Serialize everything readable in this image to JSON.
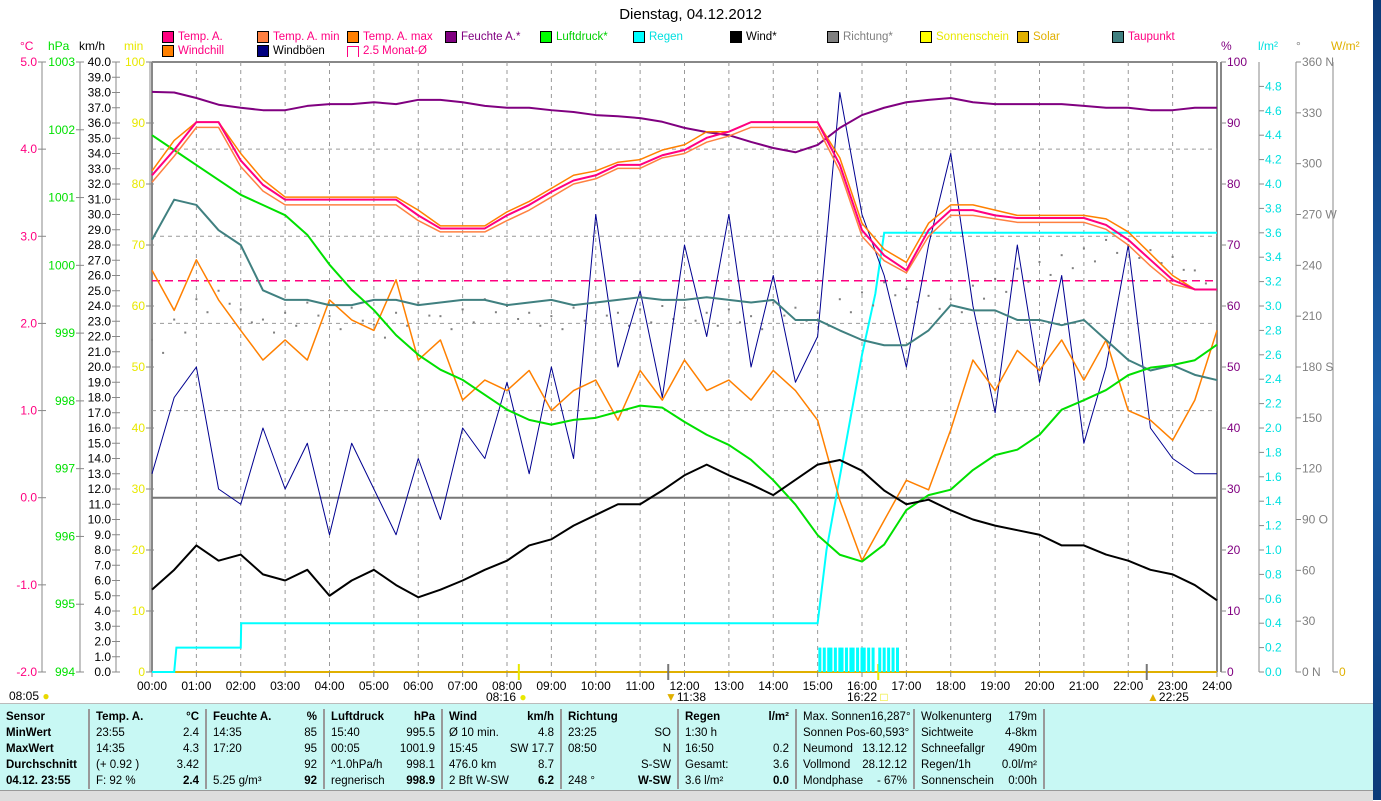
{
  "title": "Dienstag, 04.12.2012",
  "legend": [
    {
      "label": "Temp. A.",
      "swatch": "#ff0080",
      "text": "#ff0080"
    },
    {
      "label": "Temp. A. min",
      "swatch": "#ff8040",
      "text": "#ff0080"
    },
    {
      "label": "Temp. A. max",
      "swatch": "#ff8000",
      "text": "#ff0080"
    },
    {
      "label": "Feuchte A.*",
      "swatch": "#800080",
      "text": "#800080"
    },
    {
      "label": "Luftdruck*",
      "swatch": "#00ff00",
      "text": "#00d000"
    },
    {
      "label": "Regen",
      "swatch": "#00ffff",
      "text": "#00e0e0"
    },
    {
      "label": "Wind*",
      "swatch": "#000000",
      "text": "#000000"
    },
    {
      "label": "Richtung*",
      "swatch": "#808080",
      "text": "#808080"
    },
    {
      "label": "Sonnenschein",
      "swatch": "#ffff00",
      "text": "#e8e800"
    },
    {
      "label": "Solar",
      "swatch": "#e0b000",
      "text": "#e0b000"
    },
    {
      "label": "Taupunkt",
      "swatch": "#408080",
      "text": "#ff0080"
    },
    {
      "label": "Windchill",
      "swatch": "#ff8000",
      "text": "#ff0080"
    },
    {
      "label": "Windböen",
      "swatch": "#000080",
      "text": "#000000"
    },
    {
      "label": "2.5 Monat-Ø",
      "swatch": "#ffffff",
      "text": "#ff0080"
    }
  ],
  "units": {
    "c": "°C",
    "hpa": "hPa",
    "kmh": "km/h",
    "min": "min",
    "pct": "%",
    "lm2": "l/m²",
    "deg": "°",
    "wm2": "W/m²"
  },
  "axis_labels": {
    "c": [
      "5.0",
      "4.0",
      "3.0",
      "2.0",
      "1.0",
      "0.0",
      "-1.0",
      "-2.0"
    ],
    "hpa": [
      "1003",
      "1002",
      "1001",
      "1000",
      "999",
      "998",
      "997",
      "996",
      "995",
      "994"
    ],
    "min": [
      "100",
      "90",
      "80",
      "70",
      "60",
      "50",
      "40",
      "30",
      "20",
      "10",
      "0"
    ],
    "pct": [
      "100",
      "90",
      "80",
      "70",
      "60",
      "50",
      "40",
      "30",
      "20",
      "10",
      "0"
    ],
    "deg": [
      "360 N",
      "330",
      "300",
      "270 W",
      "240",
      "210",
      "180 S",
      "150",
      "120",
      "90 O",
      "60",
      "30",
      "0 N"
    ],
    "wm2": [
      "0"
    ]
  },
  "time_labels": [
    "00:00",
    "01:00",
    "02:00",
    "03:00",
    "04:00",
    "05:00",
    "06:00",
    "07:00",
    "08:00",
    "09:00",
    "10:00",
    "11:00",
    "12:00",
    "13:00",
    "14:00",
    "15:00",
    "16:00",
    "17:00",
    "18:00",
    "19:00",
    "20:00",
    "21:00",
    "22:00",
    "23:00",
    "24:00"
  ],
  "events": {
    "sunrise_prev": "08:05",
    "sunrise": "08:16",
    "moon_a": "11:38",
    "sunset": "16:22",
    "moon_b": "22:25"
  },
  "colors": {
    "temp": "#ff0080",
    "tmin": "#ff8040",
    "tmax": "#ff8000",
    "windchill": "#ff8000",
    "dew": "#408080",
    "hum": "#800080",
    "press": "#00e000",
    "wind": "#000000",
    "gust": "#000090",
    "rain": "#00ffff",
    "dir": "#808080"
  },
  "chart_data": {
    "type": "line",
    "title": "Dienstag, 04.12.2012",
    "x_unit": "hours",
    "x_step": 0.5,
    "xlim": [
      0,
      24
    ],
    "axes": {
      "c": [
        -2,
        5
      ],
      "hpa": [
        994,
        1003
      ],
      "kmh": [
        0,
        40
      ],
      "min": [
        0,
        100
      ],
      "pct": [
        0,
        100
      ],
      "lm2": [
        0,
        4.8
      ],
      "deg": [
        0,
        360
      ]
    },
    "avg_2_5_month_c": 2.49,
    "series": [
      {
        "name": "Temp. A.",
        "axis": "c",
        "key": "temp",
        "values": [
          3.7,
          3.99,
          4.31,
          4.31,
          3.87,
          3.59,
          3.42,
          3.42,
          3.42,
          3.42,
          3.42,
          3.42,
          3.24,
          3.09,
          3.09,
          3.09,
          3.24,
          3.36,
          3.51,
          3.64,
          3.7,
          3.82,
          3.82,
          3.93,
          3.99,
          4.13,
          4.2,
          4.31,
          4.31,
          4.31,
          4.31,
          3.82,
          3.07,
          2.78,
          2.61,
          3.07,
          3.3,
          3.3,
          3.24,
          3.21,
          3.21,
          3.21,
          3.21,
          3.13,
          2.96,
          2.73,
          2.5,
          2.39,
          2.39
        ]
      },
      {
        "name": "Temp. A. min",
        "axis": "c",
        "key": "tmin",
        "values": [
          3.62,
          3.92,
          4.25,
          4.25,
          3.8,
          3.52,
          3.36,
          3.36,
          3.36,
          3.36,
          3.36,
          3.36,
          3.18,
          3.05,
          3.05,
          3.05,
          3.18,
          3.3,
          3.45,
          3.6,
          3.66,
          3.78,
          3.78,
          3.9,
          3.95,
          4.08,
          4.15,
          4.25,
          4.25,
          4.25,
          4.25,
          3.75,
          3.0,
          2.72,
          2.58,
          3.0,
          3.24,
          3.24,
          3.2,
          3.16,
          3.16,
          3.16,
          3.16,
          3.08,
          2.9,
          2.66,
          2.45,
          2.39,
          2.39
        ]
      },
      {
        "name": "Temp. A. max",
        "axis": "c",
        "key": "tmax",
        "values": [
          3.75,
          4.1,
          4.31,
          4.31,
          3.95,
          3.65,
          3.45,
          3.45,
          3.45,
          3.45,
          3.45,
          3.45,
          3.3,
          3.12,
          3.12,
          3.12,
          3.28,
          3.4,
          3.55,
          3.7,
          3.75,
          3.85,
          3.88,
          3.99,
          4.05,
          4.2,
          4.2,
          4.31,
          4.31,
          4.31,
          4.31,
          3.9,
          3.15,
          2.85,
          2.7,
          3.15,
          3.36,
          3.36,
          3.3,
          3.24,
          3.24,
          3.24,
          3.24,
          3.2,
          3.05,
          2.8,
          2.55,
          2.39,
          2.39
        ]
      },
      {
        "name": "Windchill",
        "axis": "c",
        "key": "windchill",
        "values": [
          2.61,
          2.15,
          2.73,
          2.27,
          1.92,
          1.58,
          1.81,
          1.58,
          2.27,
          2.04,
          1.92,
          2.5,
          1.58,
          1.81,
          1.12,
          1.35,
          1.23,
          1.46,
          1.0,
          1.23,
          1.35,
          0.89,
          1.46,
          1.12,
          1.58,
          1.23,
          1.35,
          1.12,
          1.46,
          1.23,
          0.89,
          -0.03,
          -0.72,
          -0.26,
          0.2,
          0.09,
          0.78,
          1.58,
          1.23,
          1.69,
          1.46,
          1.81,
          1.35,
          1.81,
          1.0,
          0.89,
          0.66,
          1.12,
          1.92
        ]
      },
      {
        "name": "Taupunkt",
        "axis": "c",
        "key": "dew",
        "values": [
          2.96,
          3.42,
          3.36,
          3.07,
          2.9,
          2.38,
          2.27,
          2.27,
          2.21,
          2.21,
          2.27,
          2.27,
          2.21,
          2.24,
          2.27,
          2.27,
          2.21,
          2.24,
          2.27,
          2.21,
          2.24,
          2.27,
          2.3,
          2.27,
          2.27,
          2.3,
          2.27,
          2.24,
          2.27,
          2.04,
          2.04,
          1.92,
          1.81,
          1.75,
          1.75,
          1.92,
          2.21,
          2.15,
          2.15,
          2.04,
          2.04,
          1.98,
          2.04,
          1.81,
          1.58,
          1.46,
          1.52,
          1.41,
          1.35
        ]
      },
      {
        "name": "Feuchte A.",
        "axis": "pct",
        "key": "hum",
        "values": [
          95.1,
          95.0,
          94.1,
          93.0,
          92.5,
          92.1,
          92.1,
          92.8,
          93.1,
          93.1,
          93.4,
          93.1,
          93.8,
          93.8,
          93.4,
          92.8,
          92.5,
          92.5,
          92.1,
          91.8,
          91.3,
          91.1,
          90.8,
          90.2,
          89.2,
          88.5,
          88.0,
          86.9,
          85.9,
          85.2,
          86.4,
          89.2,
          91.3,
          92.5,
          93.4,
          93.8,
          94.1,
          93.4,
          93.1,
          93.1,
          93.1,
          93.1,
          92.8,
          92.5,
          92.5,
          92.1,
          92.1,
          92.5,
          92.5
        ]
      },
      {
        "name": "Luftdruck",
        "axis": "hpa",
        "key": "press",
        "values": [
          1001.92,
          1001.7,
          1001.48,
          1001.26,
          1001.04,
          1000.89,
          1000.74,
          1000.45,
          1000.01,
          999.64,
          999.34,
          998.97,
          998.68,
          998.46,
          998.31,
          998.09,
          997.87,
          997.72,
          997.65,
          997.72,
          997.75,
          997.84,
          997.93,
          997.9,
          997.69,
          997.5,
          997.35,
          997.13,
          996.83,
          996.47,
          996.02,
          995.73,
          995.63,
          995.88,
          996.39,
          996.61,
          996.69,
          996.98,
          997.2,
          997.28,
          997.5,
          997.87,
          998.01,
          998.16,
          998.38,
          998.49,
          998.53,
          998.6,
          998.83
        ]
      },
      {
        "name": "Wind",
        "axis": "kmh",
        "key": "wind",
        "values": [
          5.4,
          6.7,
          8.3,
          7.3,
          7.7,
          6.4,
          6.0,
          6.7,
          5.0,
          6.0,
          6.7,
          5.7,
          4.9,
          5.4,
          6.0,
          6.7,
          7.3,
          8.3,
          8.7,
          9.6,
          10.3,
          11.0,
          11.0,
          11.9,
          12.9,
          13.6,
          12.9,
          12.3,
          11.6,
          12.6,
          13.6,
          13.9,
          13.2,
          11.9,
          11.0,
          11.3,
          10.6,
          10.0,
          9.6,
          9.3,
          9.0,
          8.3,
          8.3,
          7.7,
          7.3,
          6.7,
          6.4,
          5.7,
          4.7
        ]
      },
      {
        "name": "Windböen",
        "axis": "kmh",
        "key": "gust",
        "values": [
          13,
          18,
          20,
          12,
          11,
          16,
          12,
          15,
          9,
          15,
          12,
          9,
          14,
          10,
          16,
          14,
          19,
          13,
          20,
          14,
          30,
          20,
          25,
          18,
          28,
          22,
          30,
          20,
          26,
          19,
          22,
          38,
          30,
          26,
          20,
          28,
          34,
          24,
          17,
          28,
          19,
          26,
          15,
          20,
          28,
          16,
          14,
          13,
          13
        ]
      },
      {
        "name": "Richtung",
        "axis": "deg",
        "key": "dir",
        "values": [
          196,
          208,
          220,
          225,
          214,
          208,
          212,
          218,
          210,
          215,
          205,
          212,
          218,
          210,
          214,
          220,
          216,
          212,
          210,
          215,
          218,
          212,
          214,
          216,
          215,
          212,
          214,
          210,
          218,
          215,
          212,
          220,
          224,
          230,
          226,
          222,
          220,
          228,
          232,
          238,
          242,
          246,
          250,
          255,
          252,
          249,
          245,
          237,
          225
        ]
      }
    ],
    "rain_total": {
      "name": "Regen",
      "axis": "lm2",
      "points": [
        [
          0,
          0
        ],
        [
          0.5,
          0
        ],
        [
          0.55,
          0.2
        ],
        [
          2,
          0.2
        ],
        [
          2.01,
          0.4
        ],
        [
          15,
          0.4
        ],
        [
          15.2,
          1.0
        ],
        [
          15.6,
          1.8
        ],
        [
          16.0,
          2.6
        ],
        [
          16.3,
          3.1
        ],
        [
          16.5,
          3.6
        ],
        [
          24,
          3.6
        ]
      ]
    },
    "rain_rate_hours": [
      15.05,
      15.15,
      15.25,
      15.3,
      15.4,
      15.5,
      15.55,
      15.65,
      15.75,
      15.8,
      15.9,
      16.0,
      16.05,
      16.15,
      16.25,
      16.4,
      16.5,
      16.6,
      16.7,
      16.8
    ],
    "rain_rate_value": 0.2
  },
  "panel": {
    "sensor": [
      "Sensor",
      "MinWert",
      "MaxWert",
      "Durchschnitt",
      "04.12. 23:55"
    ],
    "temp": {
      "head": [
        "Temp. A.",
        "°C"
      ],
      "rows": [
        [
          "23:55",
          "2.4"
        ],
        [
          "14:35",
          "4.3"
        ],
        [
          "(+ 0.92 )",
          "3.42"
        ],
        [
          "F: 92 %",
          "2.4"
        ]
      ]
    },
    "hum": {
      "head": [
        "Feuchte A.",
        "%"
      ],
      "rows": [
        [
          "14:35",
          "85"
        ],
        [
          "17:20",
          "95"
        ],
        [
          "",
          "92"
        ],
        [
          "5.25 g/m³",
          "92"
        ]
      ]
    },
    "press": {
      "head": [
        "Luftdruck",
        "hPa"
      ],
      "rows": [
        [
          "15:40",
          "995.5"
        ],
        [
          "00:05",
          "1001.9"
        ],
        [
          "^1.0hPa/h",
          "998.1"
        ],
        [
          "regnerisch",
          "998.9"
        ]
      ]
    },
    "wind": {
      "head": [
        "Wind",
        "km/h"
      ],
      "rows": [
        [
          "Ø 10 min.",
          "4.8"
        ],
        [
          "15:45",
          "SW 17.7"
        ],
        [
          "476.0 km",
          "8.7"
        ],
        [
          "2 Bft W-SW",
          "6.2"
        ]
      ]
    },
    "dir": {
      "head": [
        "Richtung",
        ""
      ],
      "rows": [
        [
          "23:25",
          "SO"
        ],
        [
          "08:50",
          "N"
        ],
        [
          "",
          "S-SW"
        ],
        [
          "248 °",
          "W-SW"
        ]
      ]
    },
    "rain": {
      "head": [
        "Regen",
        "l/m²"
      ],
      "rows": [
        [
          "1:30 h",
          ""
        ],
        [
          "16:50",
          "0.2"
        ],
        [
          "Gesamt:",
          "3.6"
        ],
        [
          "3.6 l/m²",
          "0.0"
        ]
      ]
    },
    "astro": {
      "rows": [
        [
          "Max. Sonnen",
          "16,287°"
        ],
        [
          "Sonnen Pos",
          "-60,593°"
        ],
        [
          "Neumond",
          "13.12.12"
        ],
        [
          "Vollmond",
          "28.12.12"
        ],
        [
          "Mondphase",
          "- 67%"
        ]
      ]
    },
    "misc": {
      "rows": [
        [
          "Wolkenunterg",
          "179m"
        ],
        [
          "Sichtweite",
          "4-8km"
        ],
        [
          "Schneefallgr",
          "490m"
        ],
        [
          "Regen/1h",
          "0.0l/m²"
        ],
        [
          "Sonnenschein",
          "0:00h"
        ]
      ]
    }
  }
}
